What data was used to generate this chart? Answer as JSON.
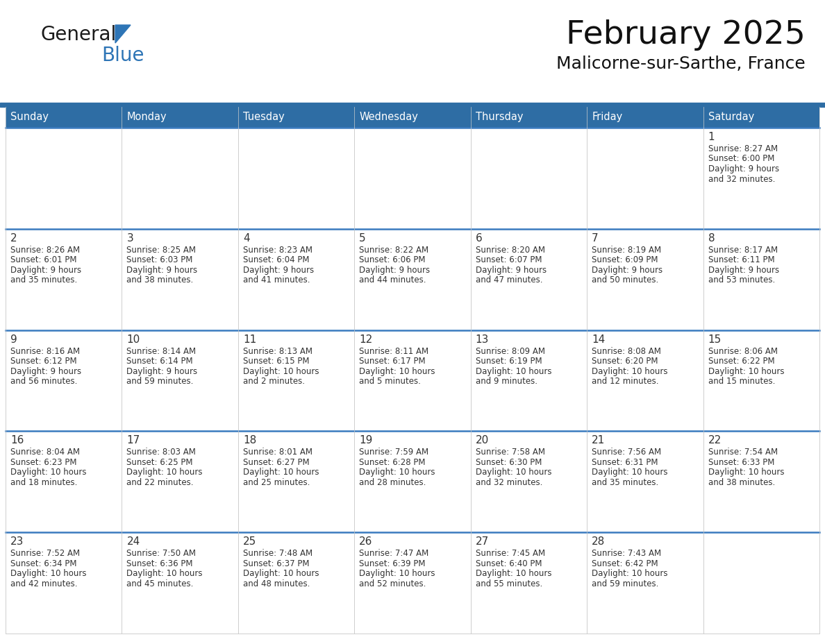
{
  "title": "February 2025",
  "subtitle": "Malicorne-sur-Sarthe, France",
  "header_bg": "#2E6DA4",
  "header_text_color": "#FFFFFF",
  "cell_bg_gray": "#EFEFEF",
  "cell_bg_white": "#FFFFFF",
  "border_color": "#2E6DA4",
  "row_border_color": "#3A7BBF",
  "text_color": "#333333",
  "day_headers": [
    "Sunday",
    "Monday",
    "Tuesday",
    "Wednesday",
    "Thursday",
    "Friday",
    "Saturday"
  ],
  "days": [
    {
      "day": 1,
      "col": 6,
      "row": 0,
      "sunrise": "8:27 AM",
      "sunset": "6:00 PM",
      "daylight": "9 hours and 32 minutes"
    },
    {
      "day": 2,
      "col": 0,
      "row": 1,
      "sunrise": "8:26 AM",
      "sunset": "6:01 PM",
      "daylight": "9 hours and 35 minutes"
    },
    {
      "day": 3,
      "col": 1,
      "row": 1,
      "sunrise": "8:25 AM",
      "sunset": "6:03 PM",
      "daylight": "9 hours and 38 minutes"
    },
    {
      "day": 4,
      "col": 2,
      "row": 1,
      "sunrise": "8:23 AM",
      "sunset": "6:04 PM",
      "daylight": "9 hours and 41 minutes"
    },
    {
      "day": 5,
      "col": 3,
      "row": 1,
      "sunrise": "8:22 AM",
      "sunset": "6:06 PM",
      "daylight": "9 hours and 44 minutes"
    },
    {
      "day": 6,
      "col": 4,
      "row": 1,
      "sunrise": "8:20 AM",
      "sunset": "6:07 PM",
      "daylight": "9 hours and 47 minutes"
    },
    {
      "day": 7,
      "col": 5,
      "row": 1,
      "sunrise": "8:19 AM",
      "sunset": "6:09 PM",
      "daylight": "9 hours and 50 minutes"
    },
    {
      "day": 8,
      "col": 6,
      "row": 1,
      "sunrise": "8:17 AM",
      "sunset": "6:11 PM",
      "daylight": "9 hours and 53 minutes"
    },
    {
      "day": 9,
      "col": 0,
      "row": 2,
      "sunrise": "8:16 AM",
      "sunset": "6:12 PM",
      "daylight": "9 hours and 56 minutes"
    },
    {
      "day": 10,
      "col": 1,
      "row": 2,
      "sunrise": "8:14 AM",
      "sunset": "6:14 PM",
      "daylight": "9 hours and 59 minutes"
    },
    {
      "day": 11,
      "col": 2,
      "row": 2,
      "sunrise": "8:13 AM",
      "sunset": "6:15 PM",
      "daylight": "10 hours and 2 minutes"
    },
    {
      "day": 12,
      "col": 3,
      "row": 2,
      "sunrise": "8:11 AM",
      "sunset": "6:17 PM",
      "daylight": "10 hours and 5 minutes"
    },
    {
      "day": 13,
      "col": 4,
      "row": 2,
      "sunrise": "8:09 AM",
      "sunset": "6:19 PM",
      "daylight": "10 hours and 9 minutes"
    },
    {
      "day": 14,
      "col": 5,
      "row": 2,
      "sunrise": "8:08 AM",
      "sunset": "6:20 PM",
      "daylight": "10 hours and 12 minutes"
    },
    {
      "day": 15,
      "col": 6,
      "row": 2,
      "sunrise": "8:06 AM",
      "sunset": "6:22 PM",
      "daylight": "10 hours and 15 minutes"
    },
    {
      "day": 16,
      "col": 0,
      "row": 3,
      "sunrise": "8:04 AM",
      "sunset": "6:23 PM",
      "daylight": "10 hours and 18 minutes"
    },
    {
      "day": 17,
      "col": 1,
      "row": 3,
      "sunrise": "8:03 AM",
      "sunset": "6:25 PM",
      "daylight": "10 hours and 22 minutes"
    },
    {
      "day": 18,
      "col": 2,
      "row": 3,
      "sunrise": "8:01 AM",
      "sunset": "6:27 PM",
      "daylight": "10 hours and 25 minutes"
    },
    {
      "day": 19,
      "col": 3,
      "row": 3,
      "sunrise": "7:59 AM",
      "sunset": "6:28 PM",
      "daylight": "10 hours and 28 minutes"
    },
    {
      "day": 20,
      "col": 4,
      "row": 3,
      "sunrise": "7:58 AM",
      "sunset": "6:30 PM",
      "daylight": "10 hours and 32 minutes"
    },
    {
      "day": 21,
      "col": 5,
      "row": 3,
      "sunrise": "7:56 AM",
      "sunset": "6:31 PM",
      "daylight": "10 hours and 35 minutes"
    },
    {
      "day": 22,
      "col": 6,
      "row": 3,
      "sunrise": "7:54 AM",
      "sunset": "6:33 PM",
      "daylight": "10 hours and 38 minutes"
    },
    {
      "day": 23,
      "col": 0,
      "row": 4,
      "sunrise": "7:52 AM",
      "sunset": "6:34 PM",
      "daylight": "10 hours and 42 minutes"
    },
    {
      "day": 24,
      "col": 1,
      "row": 4,
      "sunrise": "7:50 AM",
      "sunset": "6:36 PM",
      "daylight": "10 hours and 45 minutes"
    },
    {
      "day": 25,
      "col": 2,
      "row": 4,
      "sunrise": "7:48 AM",
      "sunset": "6:37 PM",
      "daylight": "10 hours and 48 minutes"
    },
    {
      "day": 26,
      "col": 3,
      "row": 4,
      "sunrise": "7:47 AM",
      "sunset": "6:39 PM",
      "daylight": "10 hours and 52 minutes"
    },
    {
      "day": 27,
      "col": 4,
      "row": 4,
      "sunrise": "7:45 AM",
      "sunset": "6:40 PM",
      "daylight": "10 hours and 55 minutes"
    },
    {
      "day": 28,
      "col": 5,
      "row": 4,
      "sunrise": "7:43 AM",
      "sunset": "6:42 PM",
      "daylight": "10 hours and 59 minutes"
    }
  ],
  "logo_general_color": "#1a1a1a",
  "logo_blue_color": "#2E75B6",
  "logo_triangle_color": "#2E75B6"
}
